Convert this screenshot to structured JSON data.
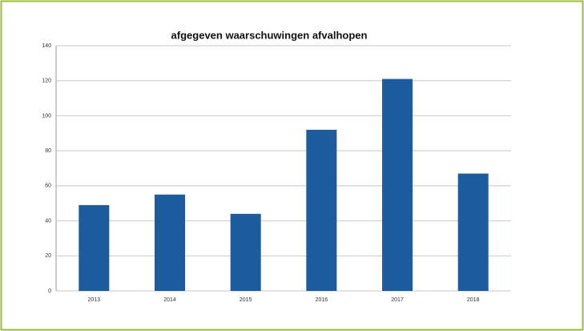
{
  "chart_data": {
    "type": "bar",
    "title": "afgegeven waarschuwingen afvalhopen",
    "categories": [
      "2013",
      "2014",
      "2015",
      "2016",
      "2017",
      "2018"
    ],
    "values": [
      49,
      55,
      44,
      92,
      121,
      67
    ],
    "color": "#1c5c9e",
    "ylim": [
      0,
      140
    ],
    "yticks": [
      0,
      20,
      40,
      60,
      80,
      100,
      120,
      140
    ],
    "grid": true
  }
}
